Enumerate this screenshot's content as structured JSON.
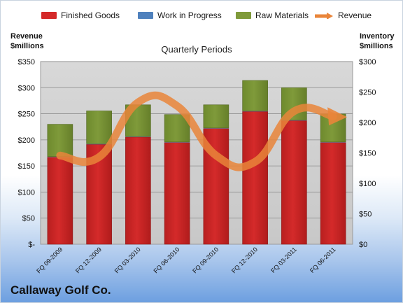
{
  "legend": {
    "finished_goods": "Finished Goods",
    "work_in_progress": "Work in Progress",
    "raw_materials": "Raw Materials",
    "revenue": "Revenue"
  },
  "left_axis_title_1": "Revenue",
  "left_axis_title_2": "$millions",
  "right_axis_title_1": "Inventory",
  "right_axis_title_2": "$millions",
  "company": "Callaway Golf Co.",
  "colors": {
    "finished_goods": "#d42a2a",
    "work_in_progress": "#4f81bd",
    "raw_materials": "#7f9a3a",
    "revenue": "#e9853a",
    "plot_bg": "#c8c8c8"
  },
  "chart_data": {
    "type": "bar",
    "title": "Quarterly Periods",
    "categories": [
      "FQ 09-2009",
      "FQ 12-2009",
      "FQ 03-2010",
      "FQ 06-2010",
      "FQ 09-2010",
      "FQ 12-2010",
      "FQ 03-2011",
      "FQ 06-2011"
    ],
    "stacked": true,
    "series": [
      {
        "name": "Finished Goods",
        "axis": "right",
        "values": [
          143,
          164,
          176,
          167,
          190,
          218,
          203,
          167
        ]
      },
      {
        "name": "Work in Progress",
        "axis": "right",
        "values": [
          1,
          1,
          1,
          1,
          1,
          1,
          1,
          1
        ]
      },
      {
        "name": "Raw Materials",
        "axis": "right",
        "values": [
          53,
          54,
          52,
          45,
          38,
          50,
          53,
          46
        ]
      },
      {
        "name": "Revenue",
        "type": "line",
        "smooth": true,
        "axis": "left",
        "values": [
          170,
          167,
          272,
          265,
          170,
          158,
          255,
          245
        ]
      }
    ],
    "left_axis": {
      "min": 0,
      "max": 350,
      "ticks": [
        "$-",
        "$50",
        "$100",
        "$150",
        "$200",
        "$250",
        "$300",
        "$350"
      ]
    },
    "right_axis": {
      "min": 0,
      "max": 300,
      "ticks": [
        "$0",
        "$50",
        "$100",
        "$150",
        "$200",
        "$250",
        "$300"
      ]
    },
    "grid": true,
    "legend_position": "top"
  }
}
